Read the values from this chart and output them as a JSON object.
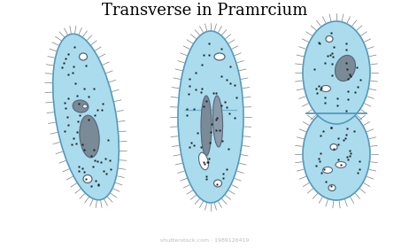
{
  "title": "Transverse in Pramrcium",
  "title_fontsize": 13,
  "bg_color": "#ffffff",
  "cell_fill": "#aadcee",
  "cell_edge": "#5599bb",
  "dark_organ_color": "#7a8a96",
  "dot_color": "#1a1a1a",
  "cilia_color": "#888888",
  "white_vacuole": "#ffffff",
  "figsize": [
    4.62,
    2.8
  ],
  "dpi": 100,
  "watermark": "shutterstock.com · 1989126419"
}
